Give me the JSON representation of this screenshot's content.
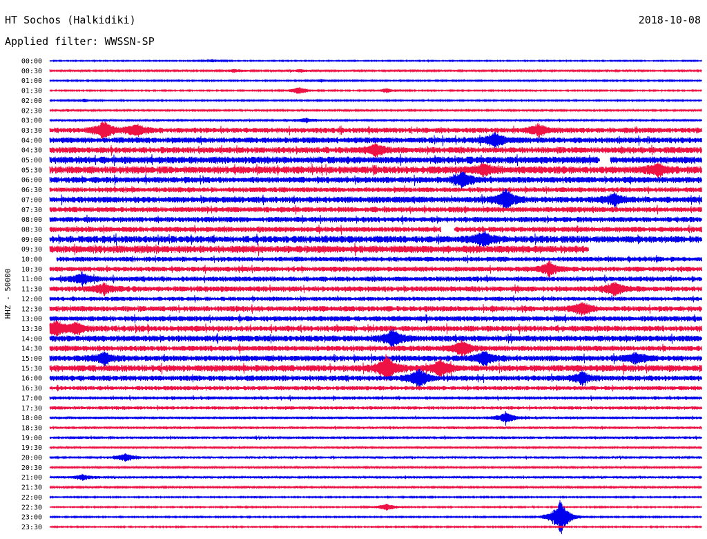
{
  "header": {
    "station": "HT Sochos (Halkidiki)",
    "date": "2018-10-08",
    "filter": "Applied filter: WWSSN-SP"
  },
  "chart_data": {
    "type": "line",
    "subtype": "helicorder",
    "title": "HT Sochos (Halkidiki)",
    "date": "2018-10-08",
    "filter": "Applied filter: WWSSN-SP",
    "ylabel": "HHZ - 50000",
    "xlabel": "",
    "rows": [
      "00:00",
      "00:30",
      "01:00",
      "01:30",
      "02:00",
      "02:30",
      "03:00",
      "03:30",
      "04:00",
      "04:30",
      "05:00",
      "05:30",
      "06:00",
      "06:30",
      "07:00",
      "07:30",
      "08:00",
      "08:30",
      "09:00",
      "09:30",
      "10:00",
      "10:30",
      "11:00",
      "11:30",
      "12:00",
      "12:30",
      "13:00",
      "13:30",
      "14:00",
      "14:30",
      "15:00",
      "15:30",
      "16:00",
      "16:30",
      "17:00",
      "17:30",
      "18:00",
      "18:30",
      "19:00",
      "19:30",
      "20:00",
      "20:30",
      "21:00",
      "21:30",
      "22:00",
      "22:30",
      "23:00",
      "23:30"
    ],
    "row_minutes": 30,
    "series_colors": [
      "#0000ee",
      "#ee1144"
    ],
    "noise_level": [
      0.5,
      0.8,
      0.6,
      0.6,
      0.6,
      0.8,
      1.0,
      2.6,
      2.8,
      3.0,
      3.4,
      3.6,
      3.0,
      2.4,
      3.0,
      2.6,
      2.6,
      2.6,
      3.4,
      3.6,
      2.4,
      2.4,
      2.4,
      2.6,
      2.0,
      2.6,
      2.6,
      2.8,
      3.0,
      2.6,
      2.8,
      3.2,
      2.6,
      2.0,
      1.6,
      1.6,
      1.2,
      1.2,
      1.2,
      1.0,
      1.0,
      0.8,
      1.0,
      0.8,
      0.6,
      0.6,
      0.6,
      0.6
    ],
    "events": [
      {
        "row": "00:00",
        "minute": 7.5,
        "amplitude": 2
      },
      {
        "row": "00:30",
        "minute": 8.5,
        "amplitude": 2
      },
      {
        "row": "00:30",
        "minute": 11.5,
        "amplitude": 2
      },
      {
        "row": "01:00",
        "minute": 12.5,
        "amplitude": 2
      },
      {
        "row": "01:30",
        "minute": 11.5,
        "amplitude": 5
      },
      {
        "row": "01:30",
        "minute": 15.5,
        "amplitude": 3
      },
      {
        "row": "02:00",
        "minute": 1.6,
        "amplitude": 2
      },
      {
        "row": "03:00",
        "minute": 11.8,
        "amplitude": 3
      },
      {
        "row": "03:30",
        "minute": 2.5,
        "amplitude": 12
      },
      {
        "row": "03:30",
        "minute": 4.0,
        "amplitude": 7
      },
      {
        "row": "03:30",
        "minute": 22.5,
        "amplitude": 8
      },
      {
        "row": "04:00",
        "minute": 20.5,
        "amplitude": 10
      },
      {
        "row": "04:30",
        "minute": 15.0,
        "amplitude": 8
      },
      {
        "row": "05:30",
        "minute": 20.0,
        "amplitude": 8
      },
      {
        "row": "05:30",
        "minute": 28.0,
        "amplitude": 8
      },
      {
        "row": "06:00",
        "minute": 19.0,
        "amplitude": 10
      },
      {
        "row": "07:00",
        "minute": 21.0,
        "amplitude": 15
      },
      {
        "row": "07:00",
        "minute": 26.0,
        "amplitude": 8
      },
      {
        "row": "09:00",
        "minute": 20.0,
        "amplitude": 10
      },
      {
        "row": "10:30",
        "minute": 23.0,
        "amplitude": 10
      },
      {
        "row": "11:00",
        "minute": 1.5,
        "amplitude": 8
      },
      {
        "row": "11:30",
        "minute": 2.5,
        "amplitude": 7
      },
      {
        "row": "11:30",
        "minute": 26.0,
        "amplitude": 9
      },
      {
        "row": "12:30",
        "minute": 24.5,
        "amplitude": 10
      },
      {
        "row": "13:30",
        "minute": 0.3,
        "amplitude": 10
      },
      {
        "row": "13:30",
        "minute": 1.2,
        "amplitude": 8
      },
      {
        "row": "14:00",
        "minute": 15.8,
        "amplitude": 12
      },
      {
        "row": "14:30",
        "minute": 19.0,
        "amplitude": 10
      },
      {
        "row": "15:00",
        "minute": 2.5,
        "amplitude": 8
      },
      {
        "row": "15:00",
        "minute": 20.0,
        "amplitude": 10
      },
      {
        "row": "15:00",
        "minute": 27.0,
        "amplitude": 8
      },
      {
        "row": "15:30",
        "minute": 15.5,
        "amplitude": 18
      },
      {
        "row": "15:30",
        "minute": 18.0,
        "amplitude": 12
      },
      {
        "row": "16:00",
        "minute": 17.0,
        "amplitude": 14
      },
      {
        "row": "16:00",
        "minute": 24.5,
        "amplitude": 9
      },
      {
        "row": "18:00",
        "minute": 21.0,
        "amplitude": 8
      },
      {
        "row": "20:00",
        "minute": 3.5,
        "amplitude": 6
      },
      {
        "row": "21:00",
        "minute": 1.5,
        "amplitude": 4
      },
      {
        "row": "22:30",
        "minute": 15.5,
        "amplitude": 5
      },
      {
        "row": "23:00",
        "minute": 23.5,
        "amplitude": 26
      }
    ],
    "gaps": [
      {
        "row": "05:00",
        "from_minute": 25.3,
        "to_minute": 25.8
      },
      {
        "row": "08:30",
        "from_minute": 18.0,
        "to_minute": 18.6
      },
      {
        "row": "09:30",
        "from_minute": 24.8,
        "to_minute": 30.0
      },
      {
        "row": "10:00",
        "from_minute": 0.0,
        "to_minute": 0.3
      }
    ]
  }
}
